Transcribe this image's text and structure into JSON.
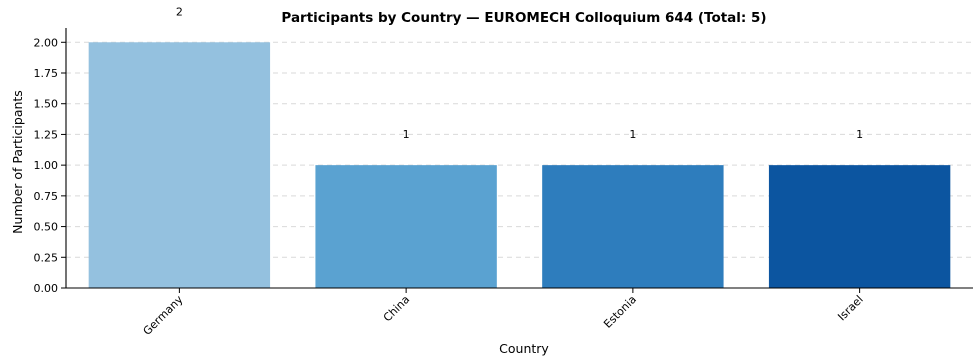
{
  "chart_data": {
    "type": "bar",
    "title": "Participants by Country — EUROMECH Colloquium 644 (Total: 5)",
    "xlabel": "Country",
    "ylabel": "Number of Participants",
    "categories": [
      "Germany",
      "China",
      "Estonia",
      "Israel"
    ],
    "values": [
      2,
      1,
      1,
      1
    ],
    "value_labels": [
      "2",
      "1",
      "1",
      "1"
    ],
    "colors": [
      "#94c1df",
      "#5aa2d1",
      "#2e7dbd",
      "#0c55a0"
    ],
    "ylim": [
      0,
      2.1
    ],
    "yticks": [
      0,
      0.25,
      0.5,
      0.75,
      1.0,
      1.25,
      1.5,
      1.75,
      2.0
    ],
    "ytick_labels": [
      "0.00",
      "0.25",
      "0.50",
      "0.75",
      "1.00",
      "1.25",
      "1.50",
      "1.75",
      "2.00"
    ],
    "grid": true,
    "legend": "none"
  }
}
